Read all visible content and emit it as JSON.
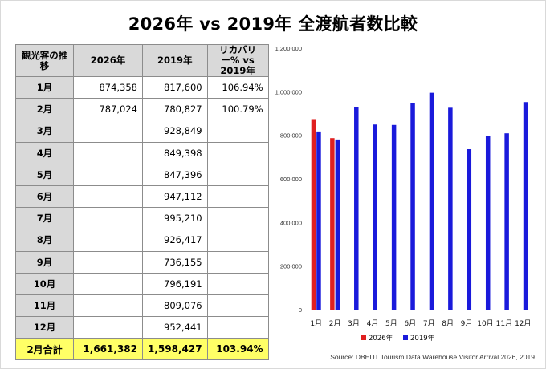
{
  "title": "2026年 vs 2019年 全渡航者数比較",
  "table": {
    "headers": [
      "観光客の推移",
      "2026年",
      "2019年",
      "リカバリー% vs 2019年"
    ],
    "rows": [
      {
        "month": "1月",
        "y2026": "874,358",
        "y2019": "817,600",
        "recovery": "106.94%"
      },
      {
        "month": "2月",
        "y2026": "787,024",
        "y2019": "780,827",
        "recovery": "100.79%"
      },
      {
        "month": "3月",
        "y2026": "",
        "y2019": "928,849",
        "recovery": ""
      },
      {
        "month": "4月",
        "y2026": "",
        "y2019": "849,398",
        "recovery": ""
      },
      {
        "month": "5月",
        "y2026": "",
        "y2019": "847,396",
        "recovery": ""
      },
      {
        "month": "6月",
        "y2026": "",
        "y2019": "947,112",
        "recovery": ""
      },
      {
        "month": "7月",
        "y2026": "",
        "y2019": "995,210",
        "recovery": ""
      },
      {
        "month": "8月",
        "y2026": "",
        "y2019": "926,417",
        "recovery": ""
      },
      {
        "month": "9月",
        "y2026": "",
        "y2019": "736,155",
        "recovery": ""
      },
      {
        "month": "10月",
        "y2026": "",
        "y2019": "796,191",
        "recovery": ""
      },
      {
        "month": "11月",
        "y2026": "",
        "y2019": "809,076",
        "recovery": ""
      },
      {
        "month": "12月",
        "y2026": "",
        "y2019": "952,441",
        "recovery": ""
      }
    ],
    "total": {
      "month": "2月合計",
      "y2026": "1,661,382",
      "y2019": "1,598,427",
      "recovery": "103.94%"
    }
  },
  "chart_data": {
    "type": "bar",
    "categories": [
      "1月",
      "2月",
      "3月",
      "4月",
      "5月",
      "6月",
      "7月",
      "8月",
      "9月",
      "10月",
      "11月",
      "12月"
    ],
    "series": [
      {
        "name": "2026年",
        "color": "#e02020",
        "values": [
          874358,
          787024,
          null,
          null,
          null,
          null,
          null,
          null,
          null,
          null,
          null,
          null
        ]
      },
      {
        "name": "2019年",
        "color": "#1a1adb",
        "values": [
          817600,
          780827,
          928849,
          849398,
          847396,
          947112,
          995210,
          926417,
          736155,
          796191,
          809076,
          952441
        ]
      }
    ],
    "ylim": [
      0,
      1200000
    ],
    "yticks": [
      0,
      200000,
      400000,
      600000,
      800000,
      1000000,
      1200000
    ],
    "ytick_labels": [
      "0",
      "200,000",
      "400,000",
      "600,000",
      "800,000",
      "1,000,000",
      "1,200,000"
    ],
    "grid": false,
    "legend_position": "bottom"
  },
  "source": "Source: DBEDT Tourism Data Warehouse Visitor Arrival 2026, 2019"
}
